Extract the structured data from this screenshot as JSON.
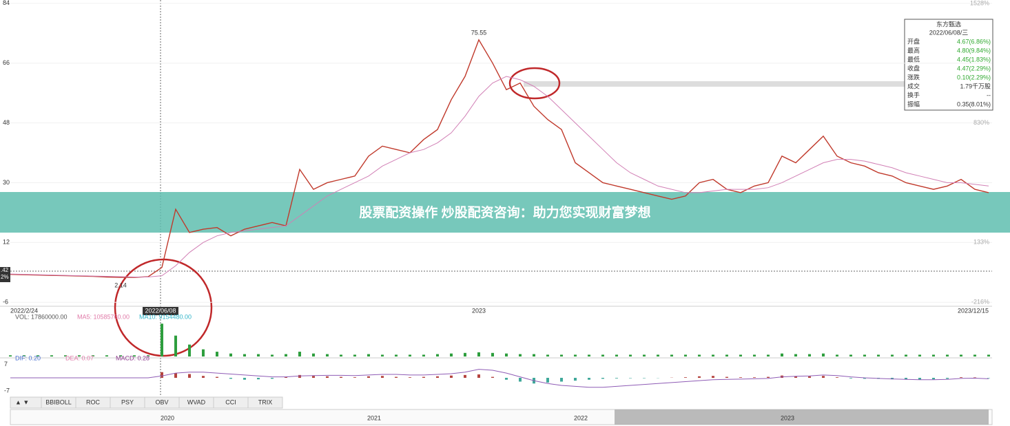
{
  "chart_data": {
    "type": "line",
    "categories": [
      "2022/2/24",
      null,
      null,
      null,
      null,
      null,
      null,
      null,
      null,
      null,
      null,
      null,
      null,
      null,
      null,
      null,
      null,
      null,
      null,
      null,
      null,
      null,
      null,
      null,
      null,
      null,
      null,
      null,
      null,
      null,
      null,
      null,
      null,
      null,
      "2023",
      null,
      null,
      null,
      null,
      null,
      null,
      null,
      null,
      null,
      null,
      null,
      null,
      null,
      null,
      null,
      null,
      null,
      null,
      null,
      null,
      null,
      null,
      null,
      null,
      null,
      null,
      null,
      null,
      null,
      null,
      null,
      null,
      null,
      null,
      null,
      null,
      "2023/12/15"
    ],
    "series": [
      {
        "color": "#c0392b",
        "values": [
          2.4,
          2.3,
          2.2,
          2.1,
          2.0,
          1.9,
          1.8,
          1.6,
          1.5,
          1.5,
          1.7,
          4.5,
          22,
          15,
          16,
          16.5,
          14,
          16,
          17,
          18,
          17,
          34,
          28,
          30,
          31,
          32,
          38,
          41,
          40,
          39,
          43,
          46,
          55,
          62,
          73,
          66,
          58,
          60,
          53,
          49,
          46,
          36,
          33,
          30,
          29,
          28,
          27,
          26,
          25,
          26,
          30,
          31,
          28,
          27,
          29,
          30,
          38,
          36,
          40,
          44,
          38,
          36,
          35,
          33,
          32,
          30,
          29,
          28,
          29,
          31,
          28,
          27
        ]
      },
      {
        "color": "#d17fb5",
        "values": [
          2.5,
          2.4,
          2.3,
          2.2,
          2.1,
          2.0,
          1.9,
          1.8,
          1.7,
          1.6,
          1.6,
          2.0,
          5,
          9,
          12,
          14,
          15,
          15.5,
          16,
          16.5,
          17,
          20,
          23,
          26,
          28,
          30,
          32,
          35,
          37,
          39,
          40,
          42,
          45,
          50,
          56,
          60,
          62,
          61,
          59,
          56,
          52,
          48,
          44,
          40,
          36,
          33,
          31,
          29,
          28,
          27,
          27,
          27.5,
          28,
          28,
          28,
          28.5,
          30,
          32,
          34,
          36,
          37,
          37,
          36.5,
          35.5,
          34.5,
          33,
          32,
          31,
          30,
          30,
          29.5,
          29
        ]
      }
    ],
    "ylim": [
      -7.2,
      85
    ],
    "yticks": [
      -6,
      12,
      30,
      48,
      66,
      84
    ],
    "y2lim": [
      -240,
      1548
    ],
    "y2ticks": [
      {
        "value": 1528,
        "label": "1528%"
      },
      {
        "value": 830,
        "label": "830%"
      },
      {
        "value": 133,
        "label": "133%"
      },
      {
        "value": -216,
        "label": "-216%"
      }
    ],
    "max_label": "75.55",
    "min_label": "2.14",
    "crosshair_date": "2022/06/08",
    "crosshair_labels": [
      ".42",
      "2%"
    ],
    "volume": {
      "legend": [
        "VOL: 17860000.00",
        "MA5: 10585760.00",
        "MA10: 9154480.00"
      ],
      "color": "#2e9e3e",
      "ylim": [
        0,
        0.6
      ],
      "values": [
        0.02,
        0.02,
        0.02,
        0.02,
        0.02,
        0.02,
        0.02,
        0.02,
        0.02,
        0.02,
        0.02,
        0.55,
        0.35,
        0.2,
        0.12,
        0.08,
        0.05,
        0.04,
        0.04,
        0.03,
        0.04,
        0.08,
        0.05,
        0.04,
        0.03,
        0.03,
        0.04,
        0.03,
        0.03,
        0.03,
        0.03,
        0.04,
        0.05,
        0.06,
        0.07,
        0.06,
        0.05,
        0.04,
        0.04,
        0.03,
        0.03,
        0.03,
        0.03,
        0.03,
        0.03,
        0.03,
        0.03,
        0.03,
        0.03,
        0.03,
        0.03,
        0.03,
        0.03,
        0.03,
        0.03,
        0.03,
        0.05,
        0.04,
        0.04,
        0.05,
        0.03,
        0.03,
        0.03,
        0.03,
        0.03,
        0.03,
        0.03,
        0.03,
        0.03,
        0.03,
        0.03,
        0.03
      ]
    },
    "macd": {
      "legend": [
        "DIF: 0.20",
        "DEA: 0.07",
        "MACD: 0.28"
      ],
      "ylim": [
        -8,
        8
      ],
      "yticks": [
        7,
        -7
      ],
      "hist": [
        0,
        0,
        0,
        0,
        0,
        0,
        0,
        0,
        0,
        0,
        0,
        3,
        2.5,
        2,
        1,
        0.5,
        -0.5,
        -1,
        -0.8,
        -0.5,
        0.5,
        1.5,
        1,
        0.8,
        0.5,
        0.3,
        0.8,
        1,
        0.5,
        0.3,
        0.5,
        0.8,
        1.2,
        1.5,
        1.8,
        0.5,
        -1,
        -2,
        -3,
        -2.5,
        -2,
        -1.5,
        -1,
        -0.5,
        -0.3,
        -0.2,
        -0.2,
        -0.1,
        0.1,
        0.3,
        0.8,
        1,
        0.5,
        0.3,
        0.3,
        0.5,
        1.2,
        0.8,
        0.8,
        1,
        0.3,
        -0.3,
        -0.5,
        -0.5,
        -0.8,
        -0.8,
        -1,
        -0.8,
        -0.5,
        0.3,
        0.2,
        -0.2
      ],
      "dif": [
        0,
        0,
        0,
        0,
        0,
        0,
        0,
        0,
        0,
        0,
        0,
        1,
        2.5,
        3,
        3,
        2.5,
        2,
        1.5,
        1,
        0.5,
        0.5,
        1,
        1.2,
        1.3,
        1.3,
        1.2,
        1.5,
        1.8,
        1.8,
        1.5,
        1.5,
        1.8,
        2.2,
        3,
        4.5,
        4,
        2.5,
        0.5,
        -1.5,
        -3,
        -4,
        -4.5,
        -5,
        -5,
        -4.5,
        -4,
        -3.5,
        -3,
        -2.5,
        -2,
        -1.5,
        -1,
        -0.8,
        -0.7,
        -0.5,
        -0.3,
        0.5,
        0.8,
        1,
        1.5,
        1.2,
        0.5,
        0,
        -0.3,
        -0.6,
        -0.8,
        -1,
        -1,
        -0.8,
        -0.3,
        -0.2,
        -0.5
      ]
    }
  },
  "info_panel": {
    "title": "东方甄选",
    "date": "2022/06/08/三",
    "rows": [
      [
        "开盘",
        "4.67(6.86%)"
      ],
      [
        "最高",
        "4.80(9.84%)"
      ],
      [
        "最低",
        "4.45(1.83%)"
      ],
      [
        "收盘",
        "4.47(2.29%)"
      ],
      [
        "涨跌",
        "0.10(2.29%)"
      ],
      [
        "成交",
        "1.79千万股"
      ],
      [
        "换手",
        "--"
      ],
      [
        "振幅",
        "0.35(8.01%)"
      ]
    ]
  },
  "banner": "股票配资操作 炒股配资咨询：助力您实现财富梦想",
  "indicator_tabs": [
    "BBIBOLL",
    "ROC",
    "PSY",
    "OBV",
    "WVAD",
    "CCI",
    "TRIX"
  ],
  "navigator_years": [
    "2020",
    "2021",
    "2022",
    "2023"
  ]
}
